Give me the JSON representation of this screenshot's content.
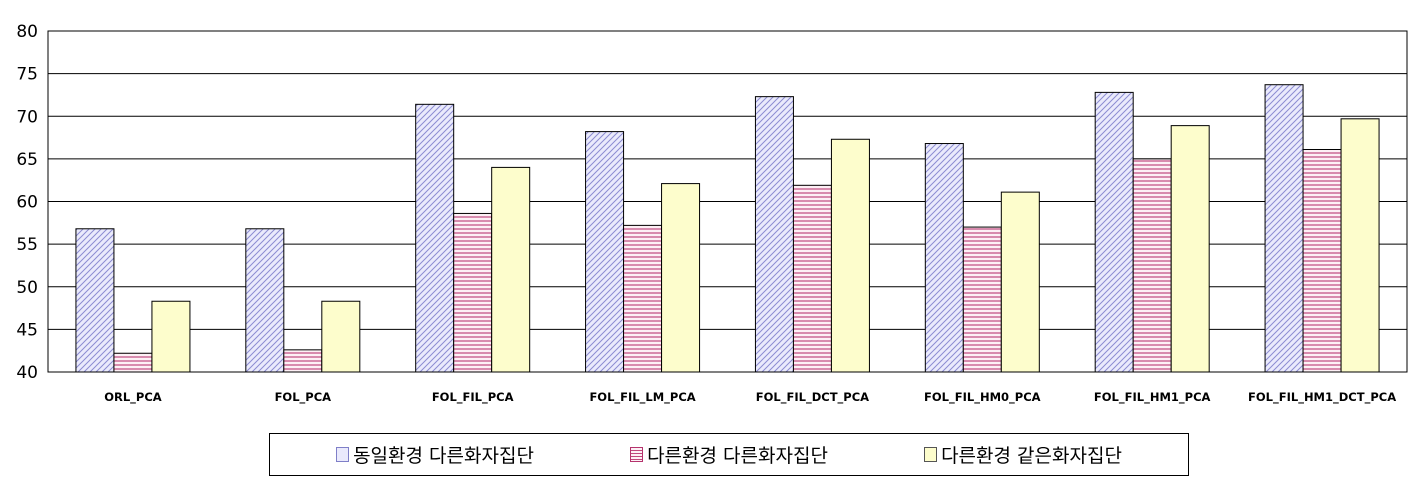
{
  "chart_data": {
    "type": "bar",
    "categories": [
      "ORL_PCA",
      "FOL_PCA",
      "FOL_FIL_PCA",
      "FOL_FIL_LM_PCA",
      "FOL_FIL_DCT_PCA",
      "FOL_FIL_HM0_PCA",
      "FOL_FIL_HM1_PCA",
      "FOL_FIL_HM1_DCT_PCA"
    ],
    "series": [
      {
        "name": "동일환경 다른화자집단",
        "pattern": "diagonal",
        "fill": "#e8e8fb",
        "stroke": "#7f7fc8",
        "values": [
          56.8,
          56.8,
          71.4,
          68.2,
          72.3,
          66.8,
          72.8,
          73.7
        ]
      },
      {
        "name": "다른환경 다른화자집단",
        "pattern": "horizontal",
        "fill": "#fbe6ee",
        "stroke": "#b5336d",
        "values": [
          42.2,
          42.6,
          58.6,
          57.2,
          61.9,
          57.0,
          65.0,
          66.1
        ]
      },
      {
        "name": "다른환경 같은화자집단",
        "pattern": "solid",
        "fill": "#fdfdcc",
        "stroke": "#fdfdcc",
        "values": [
          48.3,
          48.3,
          64.0,
          62.1,
          67.3,
          61.1,
          68.9,
          69.7
        ]
      }
    ],
    "ylim": [
      40,
      80
    ],
    "yticks": [
      "40",
      "45",
      "50",
      "55",
      "60",
      "65",
      "70",
      "75",
      "80"
    ],
    "grid": true,
    "legend_position": "bottom"
  }
}
